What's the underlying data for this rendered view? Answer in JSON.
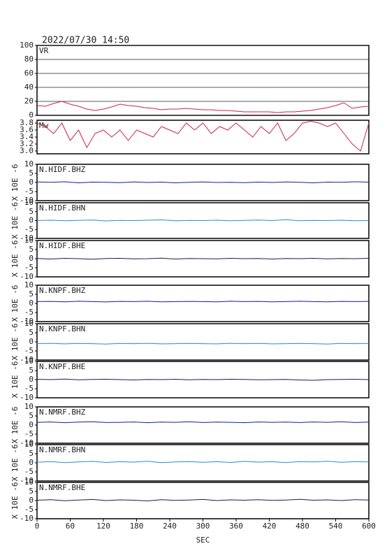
{
  "title": "2022/07/30 14:50",
  "chart_data": [
    {
      "type": "line",
      "title": "VR",
      "color": "#d0204a",
      "xlim": [
        0,
        600
      ],
      "ylim": [
        0,
        100
      ],
      "yticks": [
        0,
        20,
        40,
        60,
        80,
        100
      ],
      "grid": true,
      "x": [
        0,
        15,
        30,
        45,
        60,
        75,
        90,
        105,
        120,
        135,
        150,
        165,
        180,
        195,
        210,
        225,
        240,
        255,
        270,
        285,
        300,
        315,
        330,
        345,
        360,
        375,
        390,
        405,
        420,
        435,
        450,
        465,
        480,
        495,
        510,
        525,
        540,
        555,
        570,
        585,
        600
      ],
      "values": [
        14,
        13,
        17,
        20,
        16,
        13,
        9,
        7,
        9,
        12,
        16,
        14,
        13,
        11,
        10,
        8,
        9,
        9,
        10,
        9,
        8,
        8,
        7,
        7,
        6,
        5,
        5,
        5,
        5,
        4,
        5,
        5,
        6,
        7,
        9,
        11,
        14,
        18,
        10,
        12,
        13
      ]
    },
    {
      "type": "line",
      "title": "Mw",
      "color": "#d0204a",
      "xlim": [
        0,
        600
      ],
      "ylim": [
        2.92,
        3.88
      ],
      "yticks": [
        {
          "value": 3,
          "label": "3.0"
        },
        {
          "value": 3.2,
          "label": "3.2"
        },
        {
          "value": 3.4,
          "label": "3.4"
        },
        {
          "value": 3.6,
          "label": "3.6"
        },
        {
          "value": 3.8,
          "label": "3.8"
        }
      ],
      "x": [
        0,
        15,
        30,
        45,
        60,
        75,
        90,
        105,
        120,
        135,
        150,
        165,
        180,
        195,
        210,
        225,
        240,
        255,
        270,
        285,
        300,
        315,
        330,
        345,
        360,
        375,
        390,
        405,
        420,
        435,
        450,
        465,
        480,
        495,
        510,
        525,
        540,
        555,
        570,
        585,
        600
      ],
      "values": [
        3.8,
        3.7,
        3.5,
        3.8,
        3.3,
        3.6,
        3.1,
        3.5,
        3.6,
        3.4,
        3.6,
        3.3,
        3.6,
        3.5,
        3.4,
        3.7,
        3.6,
        3.5,
        3.8,
        3.6,
        3.8,
        3.5,
        3.7,
        3.6,
        3.8,
        3.6,
        3.4,
        3.7,
        3.5,
        3.8,
        3.3,
        3.5,
        3.8,
        3.85,
        3.8,
        3.7,
        3.8,
        3.5,
        3.2,
        3.0,
        3.8
      ]
    },
    {
      "type": "line",
      "title": "N.HIDF.BHZ",
      "ylabel": "X 10E -6",
      "color": "#1a1a9a",
      "xlim": [
        0,
        600
      ],
      "ylim": [
        -10,
        10
      ],
      "yticks": [
        -10,
        -5,
        0,
        5,
        10
      ],
      "x": [
        0,
        25,
        50,
        75,
        100,
        125,
        150,
        175,
        200,
        225,
        250,
        275,
        300,
        325,
        350,
        375,
        400,
        425,
        450,
        475,
        500,
        525,
        550,
        575,
        600
      ],
      "values": [
        0.3,
        0.1,
        0.4,
        -0.2,
        0.2,
        0.1,
        -0.1,
        0.3,
        0.0,
        0.2,
        -0.2,
        0.1,
        0.3,
        0.0,
        0.1,
        -0.1,
        0.2,
        0.0,
        0.3,
        0.1,
        -0.2,
        0.2,
        0.1,
        0.4,
        0.2
      ]
    },
    {
      "type": "line",
      "title": "N.HIDF.BHN",
      "ylabel": "X 10E -6",
      "color": "#2a8ad8",
      "xlim": [
        0,
        600
      ],
      "ylim": [
        -10,
        10
      ],
      "yticks": [
        -10,
        -5,
        0,
        5,
        10
      ],
      "x": [
        0,
        25,
        50,
        75,
        100,
        125,
        150,
        175,
        200,
        225,
        250,
        275,
        300,
        325,
        350,
        375,
        400,
        425,
        450,
        475,
        500,
        525,
        550,
        575,
        600
      ],
      "values": [
        0.0,
        0.2,
        -0.1,
        0.1,
        0.3,
        -0.2,
        0.1,
        0.0,
        0.2,
        0.4,
        -0.1,
        0.1,
        0.0,
        0.2,
        -0.1,
        0.1,
        0.3,
        0.0,
        0.5,
        -0.1,
        0.1,
        0.0,
        0.2,
        -0.1,
        0.0
      ]
    },
    {
      "type": "line",
      "title": "N.HIDF.BHE",
      "ylabel": "X 10E -6",
      "color": "#1a1a5a",
      "xlim": [
        0,
        600
      ],
      "ylim": [
        -10,
        10
      ],
      "yticks": [
        -10,
        -5,
        0,
        5,
        10
      ],
      "x": [
        0,
        25,
        50,
        75,
        100,
        125,
        150,
        175,
        200,
        225,
        250,
        275,
        300,
        325,
        350,
        375,
        400,
        425,
        450,
        475,
        500,
        525,
        550,
        575,
        600
      ],
      "values": [
        0.1,
        -0.2,
        0.2,
        0.0,
        -0.3,
        0.1,
        0.2,
        -0.1,
        0.0,
        0.3,
        -0.2,
        0.1,
        0.0,
        -0.1,
        0.2,
        0.0,
        0.1,
        -0.2,
        0.1,
        0.0,
        0.2,
        -0.1,
        0.1,
        0.0,
        0.2
      ]
    },
    {
      "type": "line",
      "title": "N.KNPF.BHZ",
      "ylabel": "X 10E -6",
      "color": "#1a1a9a",
      "xlim": [
        0,
        600
      ],
      "ylim": [
        -10,
        10
      ],
      "yticks": [
        -10,
        -5,
        0,
        5,
        10
      ],
      "x": [
        0,
        25,
        50,
        75,
        100,
        125,
        150,
        175,
        200,
        225,
        250,
        275,
        300,
        325,
        350,
        375,
        400,
        425,
        450,
        475,
        500,
        525,
        550,
        575,
        600
      ],
      "values": [
        1.0,
        1.1,
        0.9,
        1.2,
        1.0,
        0.8,
        1.1,
        1.0,
        1.2,
        0.9,
        1.0,
        1.1,
        1.0,
        0.9,
        1.2,
        1.0,
        1.1,
        0.9,
        1.0,
        1.2,
        1.0,
        0.9,
        1.1,
        1.0,
        1.1
      ]
    },
    {
      "type": "line",
      "title": "N.KNPF.BHN",
      "ylabel": "X 10E -6",
      "color": "#2a8ad8",
      "xlim": [
        0,
        600
      ],
      "ylim": [
        -10,
        10
      ],
      "yticks": [
        -10,
        -5,
        0,
        5,
        10
      ],
      "x": [
        0,
        25,
        50,
        75,
        100,
        125,
        150,
        175,
        200,
        225,
        250,
        275,
        300,
        325,
        350,
        375,
        400,
        425,
        450,
        475,
        500,
        525,
        550,
        575,
        600
      ],
      "values": [
        -1.0,
        -0.8,
        -1.1,
        -0.9,
        -1.0,
        -1.2,
        -0.9,
        -1.0,
        -0.8,
        -1.1,
        -1.0,
        -0.9,
        -1.0,
        -1.1,
        -0.8,
        -1.0,
        -0.9,
        -1.1,
        -1.0,
        -0.9,
        -1.0,
        -1.2,
        -0.9,
        -1.0,
        -0.9
      ]
    },
    {
      "type": "line",
      "title": "N.KNPF.BHE",
      "ylabel": "X 10E -6",
      "color": "#1a1a5a",
      "xlim": [
        0,
        600
      ],
      "ylim": [
        -10,
        10
      ],
      "yticks": [
        -10,
        -5,
        0,
        5,
        10
      ],
      "x": [
        0,
        25,
        50,
        75,
        100,
        125,
        150,
        175,
        200,
        225,
        250,
        275,
        300,
        325,
        350,
        375,
        400,
        425,
        450,
        475,
        500,
        525,
        550,
        575,
        600
      ],
      "values": [
        0.2,
        0.0,
        0.3,
        -0.1,
        0.1,
        0.2,
        0.0,
        -0.2,
        0.1,
        0.0,
        0.2,
        -0.1,
        0.1,
        0.0,
        0.2,
        0.1,
        -0.1,
        0.0,
        0.1,
        -0.2,
        -0.4,
        0.0,
        0.1,
        0.2,
        0.0
      ]
    },
    {
      "type": "line",
      "title": "N.NMRF.BHZ",
      "ylabel": "X 10E -6",
      "color": "#1a1a9a",
      "xlim": [
        0,
        600
      ],
      "ylim": [
        -10,
        10
      ],
      "yticks": [
        -10,
        -5,
        0,
        5,
        10
      ],
      "x": [
        0,
        25,
        50,
        75,
        100,
        125,
        150,
        175,
        200,
        225,
        250,
        275,
        300,
        325,
        350,
        375,
        400,
        425,
        450,
        475,
        500,
        525,
        550,
        575,
        600
      ],
      "values": [
        1.5,
        1.7,
        1.3,
        1.6,
        1.8,
        1.4,
        1.5,
        1.7,
        1.3,
        1.6,
        1.5,
        1.8,
        1.4,
        1.6,
        1.5,
        1.3,
        1.7,
        1.5,
        1.6,
        1.4,
        1.7,
        1.5,
        1.8,
        1.4,
        1.6
      ]
    },
    {
      "type": "line",
      "title": "N.NMRF.BHN",
      "ylabel": "X 10E -6",
      "color": "#2a8ad8",
      "xlim": [
        0,
        600
      ],
      "ylim": [
        -10,
        10
      ],
      "yticks": [
        -10,
        -5,
        0,
        5,
        10
      ],
      "x": [
        0,
        25,
        50,
        75,
        100,
        125,
        150,
        175,
        200,
        225,
        250,
        275,
        300,
        325,
        350,
        375,
        400,
        425,
        450,
        475,
        500,
        525,
        550,
        575,
        600
      ],
      "values": [
        0.3,
        0.7,
        0.1,
        0.5,
        0.8,
        0.2,
        0.6,
        0.4,
        0.9,
        0.1,
        0.5,
        0.7,
        0.3,
        0.6,
        0.2,
        0.8,
        0.4,
        0.6,
        0.1,
        0.7,
        0.5,
        0.9,
        0.3,
        0.6,
        0.5
      ]
    },
    {
      "type": "line",
      "title": "N.NMRF.BHE",
      "ylabel": "X 10E -6",
      "color": "#1a1a5a",
      "xlim": [
        0,
        600
      ],
      "ylim": [
        -10,
        10
      ],
      "yticks": [
        -10,
        -5,
        0,
        5,
        10
      ],
      "x": [
        0,
        25,
        50,
        75,
        100,
        125,
        150,
        175,
        200,
        225,
        250,
        275,
        300,
        325,
        350,
        375,
        400,
        425,
        450,
        475,
        500,
        525,
        550,
        575,
        600
      ],
      "values": [
        0.2,
        0.5,
        -0.1,
        0.3,
        0.6,
        0.0,
        0.4,
        0.2,
        -0.2,
        0.5,
        0.1,
        0.3,
        0.6,
        0.0,
        0.4,
        0.2,
        0.5,
        0.1,
        0.3,
        0.7,
        0.2,
        0.4,
        0.0,
        0.5,
        0.3
      ],
      "xticks": [
        0,
        60,
        120,
        180,
        240,
        300,
        360,
        420,
        480,
        540,
        600
      ],
      "xlabel": "SEC"
    }
  ]
}
